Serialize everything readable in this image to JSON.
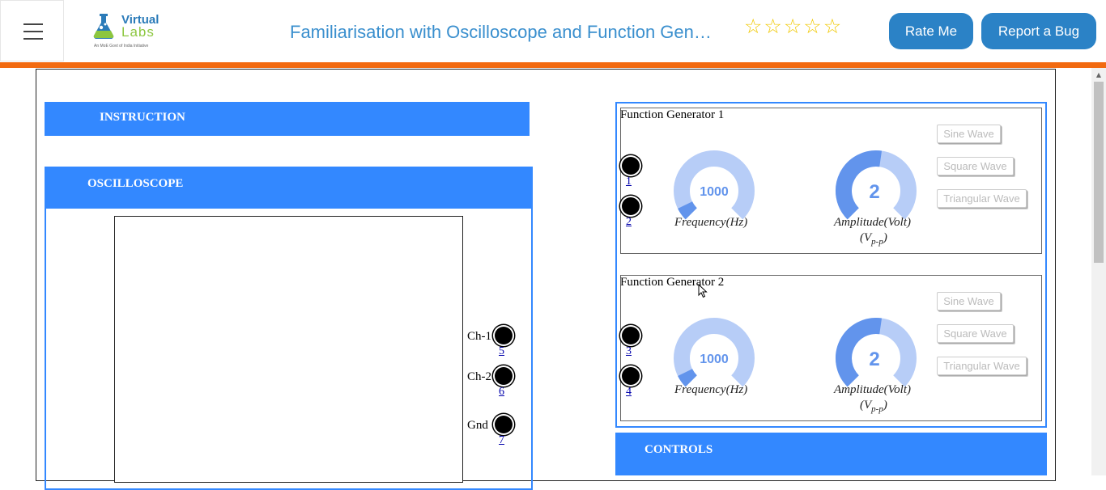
{
  "header": {
    "logo_word1": "Virtual",
    "logo_word2": "Labs",
    "logo_tagline": "An MoE Govt of India Initiative",
    "title": "Familiarisation with Oscilloscope and Function Generator",
    "rating": {
      "max": 5,
      "value": 0,
      "star_glyph": "☆"
    },
    "rate_button": "Rate Me",
    "bug_button": "Report a Bug"
  },
  "left": {
    "instruction_label": "INSTRUCTION",
    "oscilloscope_label": "OSCILLOSCOPE",
    "channels": [
      {
        "label": "Ch-1",
        "number": "5"
      },
      {
        "label": "Ch-2",
        "number": "6"
      },
      {
        "label": "Gnd",
        "number": "7"
      }
    ]
  },
  "generators": [
    {
      "title": "Function Generator 1",
      "jacks": [
        "1",
        "2"
      ],
      "frequency": {
        "value": "1000",
        "caption": "Frequency(Hz)",
        "fill": 0.07
      },
      "amplitude": {
        "value": "2",
        "caption": "Amplitude(Volt)",
        "unit_prefix": "(V",
        "unit_sub": "p-p",
        "unit_suffix": ")",
        "fill": 0.53
      },
      "wave_buttons": [
        "Sine Wave",
        "Square Wave",
        "Triangular Wave"
      ]
    },
    {
      "title": "Function Generator 2",
      "jacks": [
        "3",
        "4"
      ],
      "frequency": {
        "value": "1000",
        "caption": "Frequency(Hz)",
        "fill": 0.07
      },
      "amplitude": {
        "value": "2",
        "caption": "Amplitude(Volt)",
        "unit_prefix": "(V",
        "unit_sub": "p-p",
        "unit_suffix": ")",
        "fill": 0.53
      },
      "wave_buttons": [
        "Sine Wave",
        "Square Wave",
        "Triangular Wave"
      ]
    }
  ],
  "controls_label": "CONTROLS",
  "colors": {
    "accent_orange": "#f26a10",
    "panel_blue": "#3388ff",
    "button_blue": "#2b82c6",
    "gauge_light": "#b7cdf7",
    "gauge_dark": "#6294ec"
  },
  "icons": [
    "menu-icon",
    "star-icon",
    "scroll-up-arrow-icon",
    "mouse-cursor-icon"
  ]
}
